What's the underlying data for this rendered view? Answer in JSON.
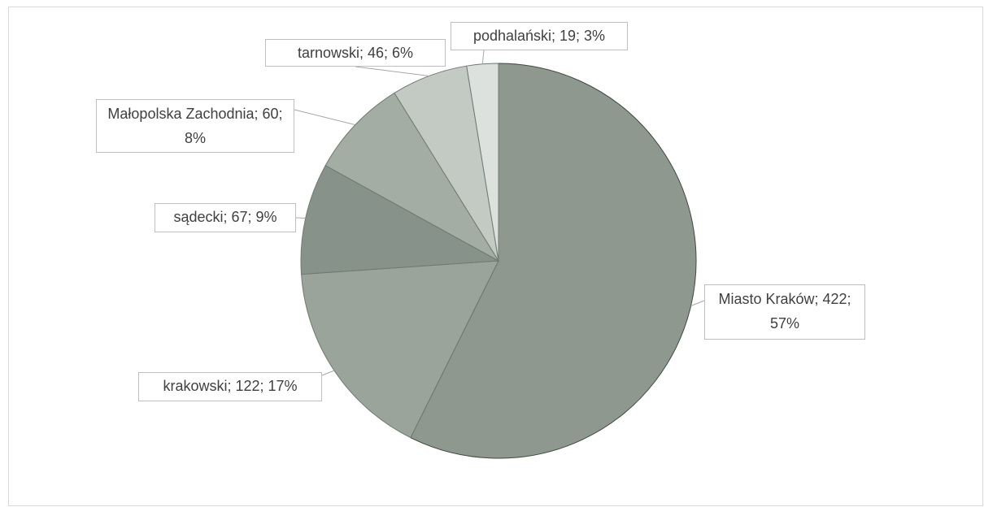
{
  "chart_data": {
    "type": "pie",
    "categories": [
      "Miasto Kraków",
      "krakowski",
      "sądecki",
      "Małopolska Zachodnia",
      "tarnowski",
      "podhalański"
    ],
    "values": [
      422,
      122,
      67,
      60,
      46,
      19
    ],
    "value_labels": [
      "Miasto Kraków; 422; 57%",
      "krakowski; 122; 17%",
      "sądecki; 67; 9%",
      "Małopolska Zachodnia; 60; 8%",
      "tarnowski; 46; 6%",
      "podhalański; 19; 3%"
    ],
    "colors": [
      "#8e988f",
      "#9aa49b",
      "#86928a",
      "#a3ada4",
      "#c3cac4",
      "#dde1de"
    ]
  }
}
